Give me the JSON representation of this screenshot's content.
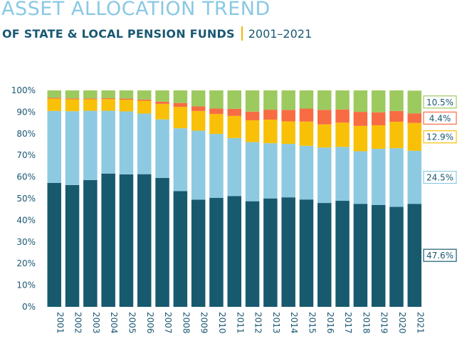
{
  "header": {
    "title": "ASSET ALLOCATION TREND",
    "subtitle": "OF STATE & LOCAL PENSION FUNDS",
    "period": "2001–2021"
  },
  "chart_data": {
    "type": "bar",
    "stacked": true,
    "categories": [
      "2001",
      "2002",
      "2003",
      "2004",
      "2005",
      "2006",
      "2007",
      "2008",
      "2009",
      "2010",
      "2011",
      "2012",
      "2013",
      "2014",
      "2015",
      "2016",
      "2017",
      "2018",
      "2019",
      "2020",
      "2021"
    ],
    "ylim": [
      0,
      100
    ],
    "yticks": [
      "0%",
      "10%",
      "20%",
      "30%",
      "40%",
      "50%",
      "60%",
      "70%",
      "80%",
      "90%",
      "100%"
    ],
    "grid": false,
    "series": [
      {
        "color": "#175a6e",
        "values": [
          57.3,
          56.3,
          58.6,
          61.6,
          61.2,
          61.3,
          59.6,
          53.5,
          49.5,
          50.4,
          51.2,
          48.8,
          50.1,
          50.6,
          49.6,
          48.0,
          49.0,
          47.6,
          47.1,
          46.2,
          47.6
        ]
      },
      {
        "color": "#8dcae2",
        "values": [
          33.2,
          34.1,
          32.0,
          29.0,
          29.1,
          28.0,
          27.0,
          29.0,
          31.9,
          29.5,
          26.8,
          27.3,
          25.5,
          24.7,
          24.8,
          25.6,
          24.9,
          24.3,
          25.9,
          27.1,
          24.5
        ]
      },
      {
        "color": "#f8c108",
        "values": [
          5.7,
          5.5,
          5.3,
          5.4,
          5.4,
          5.9,
          7.2,
          9.9,
          9.1,
          9.2,
          10.2,
          10.1,
          10.9,
          10.4,
          11.2,
          10.7,
          11.2,
          11.7,
          10.9,
          12.2,
          12.9
        ]
      },
      {
        "color": "#f86c43",
        "values": [
          0.4,
          0.4,
          0.4,
          0.4,
          0.5,
          0.6,
          1.0,
          1.8,
          2.1,
          2.5,
          3.3,
          4.0,
          4.6,
          5.3,
          6.0,
          6.7,
          6.1,
          6.5,
          6.0,
          5.0,
          4.4
        ]
      },
      {
        "color": "#9cca5f",
        "values": [
          3.4,
          3.7,
          3.7,
          3.6,
          3.8,
          4.2,
          5.2,
          5.8,
          7.4,
          8.4,
          8.5,
          9.8,
          8.9,
          9.0,
          8.4,
          9.0,
          8.8,
          9.9,
          10.1,
          9.5,
          10.5
        ]
      }
    ],
    "end_labels": [
      {
        "series": 4,
        "text": "10.5%",
        "color": "#9cca5f"
      },
      {
        "series": 3,
        "text": "4.4%",
        "color": "#f86c43"
      },
      {
        "series": 2,
        "text": "12.9%",
        "color": "#f8c108"
      },
      {
        "series": 1,
        "text": "24.5%",
        "color": "#8dcae2"
      },
      {
        "series": 0,
        "text": "47.6%",
        "color": "#175a6e"
      }
    ]
  }
}
